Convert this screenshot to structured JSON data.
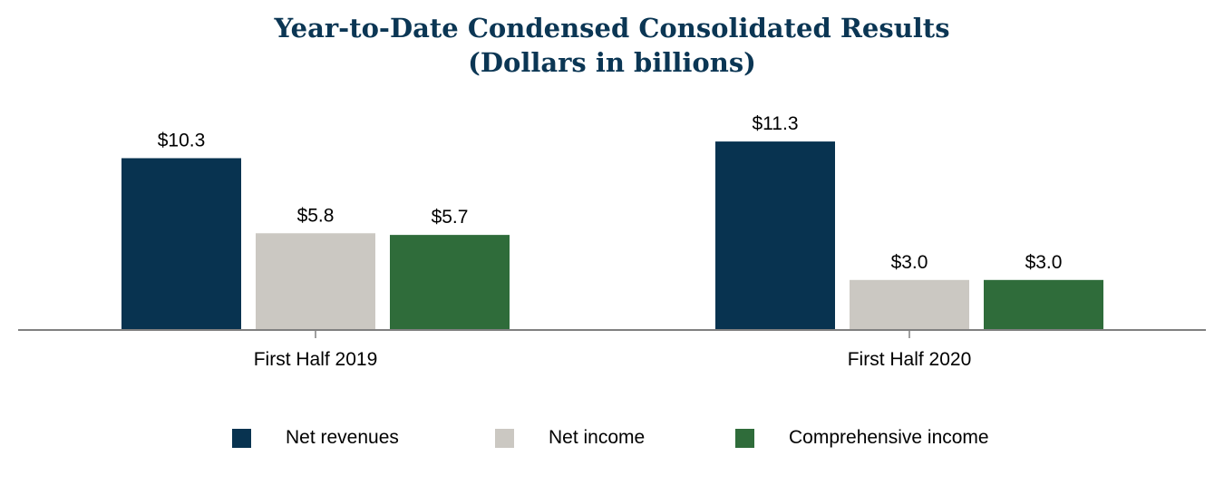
{
  "title": "Year-to-Date Condensed Consolidated Results",
  "subtitle": "(Dollars in billions)",
  "colors": {
    "net_revenues": "#083350",
    "net_income": "#cbc8c2",
    "comprehensive_income": "#2f6c3a",
    "axis": "#808080",
    "title": "#0b3654"
  },
  "chart_data": {
    "type": "bar",
    "title": "Year-to-Date Condensed Consolidated Results",
    "subtitle": "(Dollars in billions)",
    "categories": [
      "First Half 2019",
      "First Half 2020"
    ],
    "series": [
      {
        "name": "Net revenues",
        "values": [
          10.3,
          11.3
        ],
        "labels": [
          "$10.3",
          "$11.3"
        ],
        "color": "#083350"
      },
      {
        "name": "Net income",
        "values": [
          5.8,
          3.0
        ],
        "labels": [
          "$5.8",
          "$3.0"
        ],
        "color": "#cbc8c2"
      },
      {
        "name": "Comprehensive income",
        "values": [
          5.7,
          3.0
        ],
        "labels": [
          "$5.7",
          "$3.0"
        ],
        "color": "#2f6c3a"
      }
    ],
    "xlabel": "",
    "ylabel": "",
    "ylim": [
      0,
      12
    ],
    "grid": false,
    "legend_position": "bottom"
  }
}
